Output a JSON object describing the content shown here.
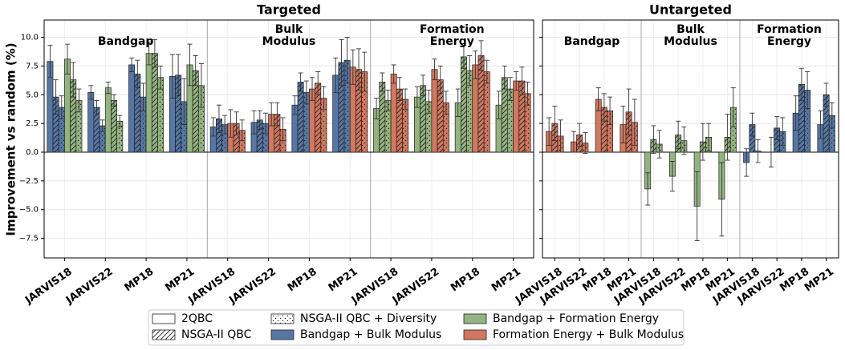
{
  "chart_data": {
    "type": "bar",
    "ylabel": "Improvement vs random (%)",
    "ylim": [
      -9.2,
      11.5
    ],
    "yticks": [
      {
        "value": -7.5,
        "label": "−7.5"
      },
      {
        "value": -5,
        "label": "−5.0"
      },
      {
        "value": -2.5,
        "label": "−2.5"
      },
      {
        "value": 0,
        "label": "0.0"
      },
      {
        "value": 2.5,
        "label": "2.5"
      },
      {
        "value": 5,
        "label": "5.0"
      },
      {
        "value": 7.5,
        "label": "7.5"
      },
      {
        "value": 10,
        "label": "10.0"
      }
    ],
    "grid": true,
    "methods": [
      {
        "name": "2QBC",
        "hatch": "none"
      },
      {
        "name": "NSGA-II QBC",
        "hatch": "/"
      },
      {
        "name": "NSGA-II QBC + Diversity",
        "hatch": "..."
      }
    ],
    "objectives": [
      {
        "name": "Bandgap + Bulk Modulus",
        "color": "#5677a6"
      },
      {
        "name": "Bandgap + Formation Energy",
        "color": "#93b47f"
      },
      {
        "name": "Formation Energy + Bulk Modulus",
        "color": "#d3775d"
      }
    ],
    "panels": [
      {
        "title": "Targeted",
        "groups": [
          "Bandgap",
          "Bulk Modulus",
          "Formation Energy"
        ],
        "categories": [
          "JARVIS18",
          "JARVIS22",
          "MP18",
          "MP21",
          "JARVIS18",
          "JARVIS22",
          "MP18",
          "MP21",
          "JARVIS18",
          "JARVIS22",
          "MP18",
          "MP21"
        ],
        "series": [
          {
            "objective": "Bandgap + Bulk Modulus",
            "method": "2QBC",
            "values": [
              7.9,
              5.2,
              7.6,
              6.6,
              2.2,
              2.6,
              4.1,
              6.7,
              null,
              null,
              null,
              null
            ],
            "errors": [
              1.4,
              0.6,
              0.6,
              1.9,
              0.8,
              1.0,
              0.8,
              1.5,
              null,
              null,
              null,
              null
            ]
          },
          {
            "objective": "Bandgap + Bulk Modulus",
            "method": "NSGA-II QBC",
            "values": [
              4.8,
              3.9,
              6.8,
              6.7,
              2.9,
              2.8,
              6.1,
              7.8,
              null,
              null,
              null,
              null
            ],
            "errors": [
              1.5,
              0.6,
              1.2,
              1.8,
              1.2,
              0.8,
              0.8,
              2.0,
              null,
              null,
              null,
              null
            ]
          },
          {
            "objective": "Bandgap + Bulk Modulus",
            "method": "NSGA-II QBC + Diversity",
            "values": [
              3.9,
              2.3,
              4.8,
              4.4,
              2.4,
              2.5,
              5.2,
              8.0,
              null,
              null,
              null,
              null
            ],
            "errors": [
              1.0,
              0.5,
              1.2,
              2.0,
              0.8,
              0.9,
              1.0,
              2.0,
              null,
              null,
              null,
              null
            ]
          },
          {
            "objective": "Bandgap + Formation Energy",
            "method": "2QBC",
            "values": [
              8.1,
              5.6,
              8.6,
              7.6,
              null,
              null,
              null,
              null,
              3.8,
              4.8,
              4.3,
              4.1
            ],
            "errors": [
              1.3,
              0.5,
              1.0,
              1.8,
              null,
              null,
              null,
              null,
              0.9,
              0.9,
              1.2,
              1.2
            ]
          },
          {
            "objective": "Bandgap + Formation Energy",
            "method": "NSGA-II QBC",
            "values": [
              6.3,
              4.5,
              8.6,
              7.1,
              null,
              null,
              null,
              null,
              6.1,
              5.8,
              8.3,
              6.5
            ],
            "errors": [
              1.5,
              0.5,
              1.2,
              1.3,
              null,
              null,
              null,
              null,
              0.8,
              0.9,
              1.0,
              1.0
            ]
          },
          {
            "objective": "Bandgap + Formation Energy",
            "method": "NSGA-II QBC + Diversity",
            "values": [
              4.5,
              2.7,
              6.5,
              5.8,
              null,
              null,
              null,
              null,
              4.5,
              4.4,
              7.1,
              5.5
            ],
            "errors": [
              1.0,
              0.5,
              1.0,
              1.9,
              null,
              null,
              null,
              null,
              0.9,
              1.0,
              1.3,
              1.0
            ]
          },
          {
            "objective": "Formation Energy + Bulk Modulus",
            "method": "2QBC",
            "values": [
              null,
              null,
              null,
              null,
              2.5,
              3.3,
              5.5,
              7.4,
              6.8,
              7.2,
              7.6,
              6.2
            ],
            "errors": [
              null,
              null,
              null,
              null,
              1.2,
              1.0,
              1.0,
              1.5,
              0.8,
              0.9,
              1.2,
              0.8
            ]
          },
          {
            "objective": "Formation Energy + Bulk Modulus",
            "method": "NSGA-II QBC",
            "values": [
              null,
              null,
              null,
              null,
              2.5,
              3.3,
              6.0,
              7.2,
              5.5,
              6.3,
              8.4,
              6.2
            ],
            "errors": [
              null,
              null,
              null,
              null,
              1.0,
              1.0,
              1.0,
              1.8,
              1.0,
              1.2,
              1.3,
              1.2
            ]
          },
          {
            "objective": "Formation Energy + Bulk Modulus",
            "method": "NSGA-II QBC + Diversity",
            "values": [
              null,
              null,
              null,
              null,
              1.9,
              2.0,
              4.7,
              7.0,
              4.6,
              4.3,
              7.0,
              5.1
            ],
            "errors": [
              null,
              null,
              null,
              null,
              0.9,
              1.0,
              1.0,
              1.7,
              0.9,
              1.0,
              1.0,
              1.0
            ]
          }
        ]
      },
      {
        "title": "Untargeted",
        "groups": [
          "Bandgap",
          "Bulk Modulus",
          "Formation Energy"
        ],
        "categories": [
          "JARVIS18",
          "JARVIS22",
          "MP18",
          "MP21",
          "JARVIS18",
          "JARVIS22",
          "MP18",
          "MP21",
          "JARVIS18",
          "JARVIS22",
          "MP18",
          "MP21"
        ],
        "series": [
          {
            "objective": "Bandgap + Bulk Modulus",
            "method": "2QBC",
            "values": [
              null,
              null,
              null,
              null,
              null,
              null,
              null,
              null,
              -0.9,
              0.0,
              3.4,
              2.4
            ],
            "errors": [
              null,
              null,
              null,
              null,
              null,
              null,
              null,
              null,
              1.2,
              1.3,
              1.5,
              1.2
            ]
          },
          {
            "objective": "Bandgap + Bulk Modulus",
            "method": "NSGA-II QBC",
            "values": [
              null,
              null,
              null,
              null,
              null,
              null,
              null,
              null,
              2.4,
              2.1,
              5.9,
              5.0
            ],
            "errors": [
              null,
              null,
              null,
              null,
              null,
              null,
              null,
              null,
              1.0,
              1.0,
              1.4,
              1.0
            ]
          },
          {
            "objective": "Bandgap + Bulk Modulus",
            "method": "NSGA-II QBC + Diversity",
            "values": [
              null,
              null,
              null,
              null,
              null,
              null,
              null,
              null,
              0.1,
              1.8,
              5.4,
              3.2
            ],
            "errors": [
              null,
              null,
              null,
              null,
              null,
              null,
              null,
              null,
              1.0,
              1.2,
              1.6,
              1.1
            ]
          },
          {
            "objective": "Bandgap + Formation Energy",
            "method": "2QBC",
            "values": [
              null,
              null,
              null,
              null,
              -3.2,
              -2.1,
              -4.7,
              -4.1,
              null,
              null,
              null,
              null
            ],
            "errors": [
              null,
              null,
              null,
              null,
              1.4,
              1.3,
              3.0,
              3.2,
              null,
              null,
              null,
              null
            ]
          },
          {
            "objective": "Bandgap + Formation Energy",
            "method": "NSGA-II QBC",
            "values": [
              null,
              null,
              null,
              null,
              1.1,
              1.5,
              0.9,
              1.3,
              null,
              null,
              null,
              null
            ],
            "errors": [
              null,
              null,
              null,
              null,
              1.2,
              1.2,
              1.6,
              2.0,
              null,
              null,
              null,
              null
            ]
          },
          {
            "objective": "Bandgap + Formation Energy",
            "method": "NSGA-II QBC + Diversity",
            "values": [
              null,
              null,
              null,
              null,
              0.7,
              1.0,
              1.3,
              3.9,
              null,
              null,
              null,
              null
            ],
            "errors": [
              null,
              null,
              null,
              null,
              1.2,
              1.2,
              1.2,
              1.7,
              null,
              null,
              null,
              null
            ]
          },
          {
            "objective": "Formation Energy + Bulk Modulus",
            "method": "2QBC",
            "values": [
              1.8,
              0.9,
              4.6,
              2.4,
              null,
              null,
              null,
              null,
              null,
              null,
              null,
              null
            ],
            "errors": [
              1.2,
              0.9,
              1.0,
              1.6,
              null,
              null,
              null,
              null,
              null,
              null,
              null,
              null
            ]
          },
          {
            "objective": "Formation Energy + Bulk Modulus",
            "method": "NSGA-II QBC",
            "values": [
              2.5,
              1.5,
              3.9,
              3.5,
              null,
              null,
              null,
              null,
              null,
              null,
              null,
              null
            ],
            "errors": [
              1.5,
              1.0,
              1.2,
              2.0,
              null,
              null,
              null,
              null,
              null,
              null,
              null,
              null
            ]
          },
          {
            "objective": "Formation Energy + Bulk Modulus",
            "method": "NSGA-II QBC + Diversity",
            "values": [
              1.4,
              0.8,
              3.6,
              2.6,
              null,
              null,
              null,
              null,
              null,
              null,
              null,
              null
            ],
            "errors": [
              1.4,
              0.9,
              1.2,
              2.0,
              null,
              null,
              null,
              null,
              null,
              null,
              null,
              null
            ]
          }
        ]
      }
    ]
  }
}
